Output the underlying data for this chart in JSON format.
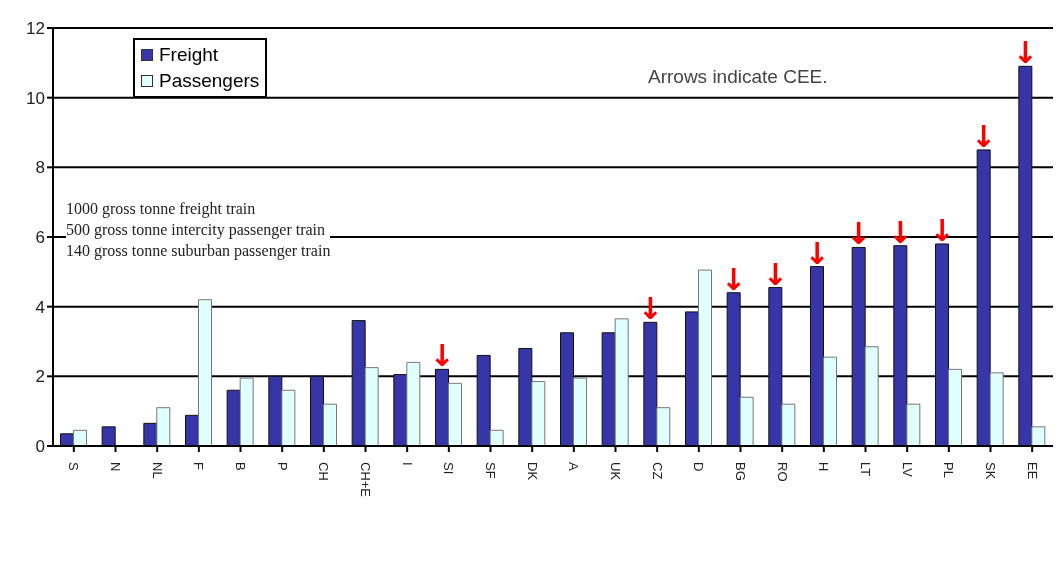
{
  "chart_data": {
    "type": "bar",
    "categories": [
      "S",
      "N",
      "NL",
      "F",
      "B",
      "P",
      "CH",
      "CH+E",
      "I",
      "SI",
      "SF",
      "DK",
      "A",
      "UK",
      "CZ",
      "D",
      "BG",
      "RO",
      "H",
      "LT",
      "LV",
      "PL",
      "SK",
      "EE"
    ],
    "series": [
      {
        "name": "Freight",
        "color": "#3636a8",
        "values": [
          0.35,
          0.55,
          0.65,
          0.88,
          1.6,
          2.0,
          2.0,
          3.6,
          2.05,
          2.2,
          2.6,
          2.8,
          3.25,
          3.25,
          3.55,
          3.85,
          4.4,
          4.55,
          5.15,
          5.7,
          5.75,
          5.8,
          8.5,
          10.9
        ]
      },
      {
        "name": "Passengers",
        "color": "#e0ffff",
        "values": [
          0.45,
          null,
          1.1,
          4.2,
          1.95,
          1.6,
          1.2,
          2.25,
          2.4,
          1.8,
          0.45,
          1.85,
          1.95,
          3.65,
          1.1,
          5.05,
          1.4,
          1.2,
          2.55,
          2.85,
          1.2,
          2.2,
          2.1,
          0.55
        ]
      }
    ],
    "ylim": [
      0,
      12
    ],
    "yticks": [
      0,
      2,
      4,
      6,
      8,
      10,
      12
    ],
    "grid": "y",
    "legend": "top left",
    "annotations": [
      "Arrows indicate CEE.",
      "1000 gross tonne freight train",
      "500 gross tonne intercity passenger train",
      "140 gross tonne suburban passenger train",
      {
        "text": "↓",
        "x": "SI",
        "y": 2.2
      },
      {
        "text": "↓",
        "x": "CZ",
        "y": 3.55
      },
      {
        "text": "↓",
        "x": "BG",
        "y": 4.4
      },
      {
        "text": "↓",
        "x": "RO",
        "y": 4.55
      },
      {
        "text": "↓",
        "x": "H",
        "y": 5.15
      },
      {
        "text": "↓",
        "x": "LT",
        "y": 5.7
      },
      {
        "text": "↓",
        "x": "LV",
        "y": 5.75
      },
      {
        "text": "↓",
        "x": "PL",
        "y": 5.8
      },
      {
        "text": "↓",
        "x": "SK",
        "y": 8.5
      },
      {
        "text": "↓",
        "x": "EE",
        "y": 10.9
      }
    ]
  }
}
